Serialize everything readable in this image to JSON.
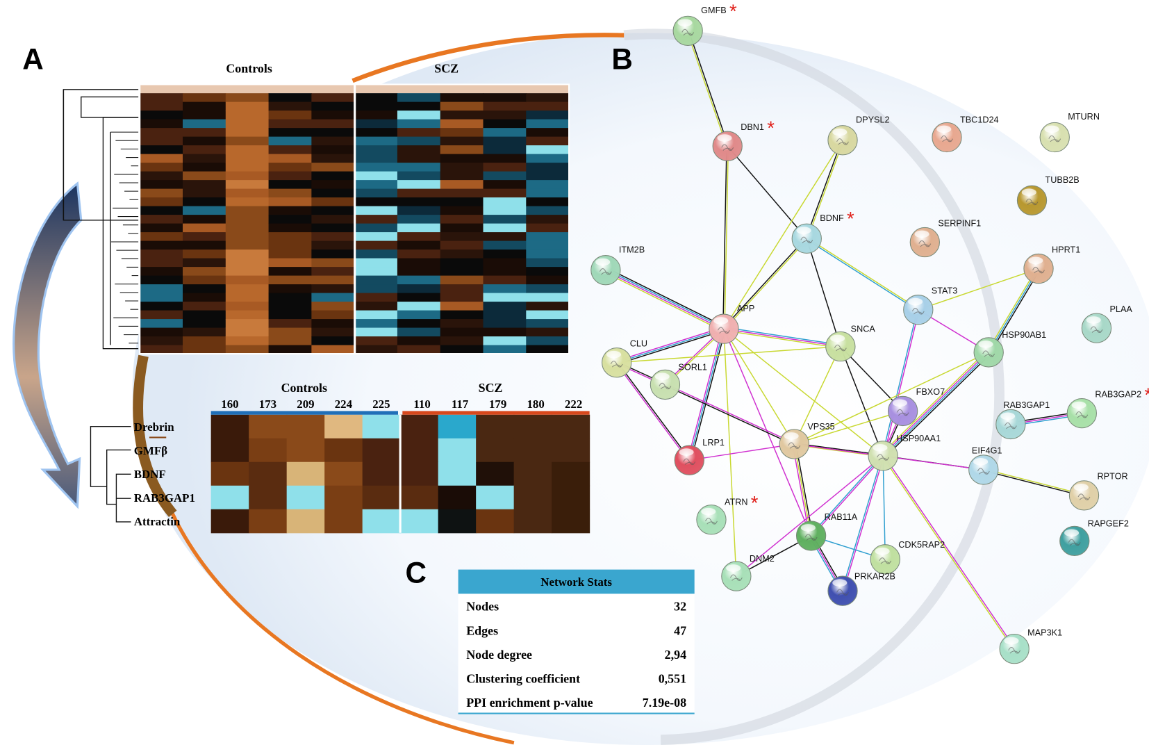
{
  "panels": {
    "a": "A",
    "b": "B",
    "c": "C"
  },
  "heatmap_top": {
    "groups": [
      "Controls",
      "SCZ"
    ]
  },
  "heatmap_bottom": {
    "groups": [
      "Controls",
      "SCZ"
    ],
    "samples": [
      160,
      173,
      209,
      224,
      225,
      110,
      117,
      179,
      180,
      222
    ],
    "rows": [
      "Drebrin",
      "GMFβ",
      "BDNF",
      "RAB3GAP1",
      "Attractin"
    ]
  },
  "network": {
    "nodes": [
      {
        "label": "GMFB",
        "flag": "*"
      },
      {
        "label": "DBN1",
        "flag": "*"
      },
      {
        "label": "DPYSL2"
      },
      {
        "label": "TBC1D24"
      },
      {
        "label": "MTURN"
      },
      {
        "label": "TUBB2B"
      },
      {
        "label": "BDNF",
        "flag": "*"
      },
      {
        "label": "SERPINF1"
      },
      {
        "label": "ITM2B"
      },
      {
        "label": "HPRT1"
      },
      {
        "label": "STAT3"
      },
      {
        "label": "APP"
      },
      {
        "label": "SNCA"
      },
      {
        "label": "HSP90AB1"
      },
      {
        "label": "PLAA"
      },
      {
        "label": "CLU"
      },
      {
        "label": "SORL1"
      },
      {
        "label": "FBXO7"
      },
      {
        "label": "RAB3GAP1"
      },
      {
        "label": "RAB3GAP2",
        "flag": "*"
      },
      {
        "label": "VPS35"
      },
      {
        "label": "HSP90AA1"
      },
      {
        "label": "EIF4G1"
      },
      {
        "label": "LRP1"
      },
      {
        "label": "RPTOR"
      },
      {
        "label": "ATRN",
        "flag": "*"
      },
      {
        "label": "RAB11A"
      },
      {
        "label": "RAPGEF2"
      },
      {
        "label": "CDK5RAP2"
      },
      {
        "label": "DNM2"
      },
      {
        "label": "PRKAR2B"
      },
      {
        "label": "MAP3K1"
      }
    ]
  },
  "table": {
    "title": "Network Stats",
    "rows": [
      [
        "Nodes",
        "32"
      ],
      [
        "Edges",
        "47"
      ],
      [
        "Node degree",
        "2,94"
      ],
      [
        "Clustering coefficient",
        "0,551"
      ],
      [
        "PPI enrichment p-value",
        "7.19e-08"
      ]
    ]
  }
}
